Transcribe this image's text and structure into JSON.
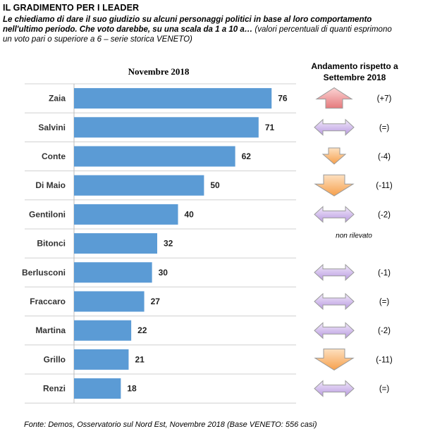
{
  "header": {
    "title": "IL GRADIMENTO PER I LEADER",
    "question": "Le chiediamo di dare il suo giudizio  su alcuni personaggi politici  in base al loro comportamento nell'ultimo periodo. Che voto darebbe, su una scala da 1 a 10 a…",
    "note": "(valori percentuali di quanti esprimono un voto pari o superiore a 6 – serie storica VENETO)"
  },
  "source": "Fonte: Demos, Osservatorio sul Nord Est, Novembre 2018 (Base VENETO: 556 casi)",
  "chart_data": {
    "type": "bar",
    "orientation": "horizontal",
    "title": "Novembre 2018",
    "categories": [
      "Zaia",
      "Salvini",
      "Conte",
      "Di Maio",
      "Gentiloni",
      "Bitonci",
      "Berlusconi",
      "Fraccaro",
      "Martina",
      "Grillo",
      "Renzi"
    ],
    "values": [
      76,
      71,
      62,
      50,
      40,
      32,
      30,
      27,
      22,
      21,
      18
    ],
    "xlim": [
      0,
      80
    ],
    "bar_color": "#5b9bd5",
    "grid": "horizontal separators",
    "trend": {
      "title": "Andamento rispetto a Settembre 2018",
      "labels": [
        "(+7)",
        "(=)",
        "(-4)",
        "(-11)",
        "(-2)",
        "non rilevato",
        "(-1)",
        "(=)",
        "(-2)",
        "(-11)",
        "(=)"
      ],
      "directions": [
        "up-large",
        "flat",
        "down-small",
        "down-large",
        "flat",
        "none",
        "flat",
        "flat",
        "flat",
        "down-large",
        "flat"
      ],
      "colors": {
        "up": "#e8888a",
        "down": "#f8b36a",
        "flat": "#c2a8e2"
      }
    }
  }
}
